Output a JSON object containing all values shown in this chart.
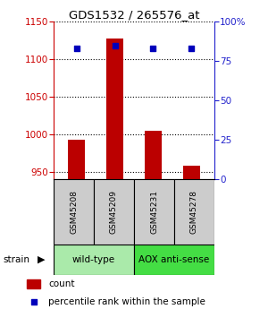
{
  "title": "GDS1532 / 265576_at",
  "samples": [
    "GSM45208",
    "GSM45209",
    "GSM45231",
    "GSM45278"
  ],
  "count_values": [
    993,
    1128,
    1004,
    958
  ],
  "percentile_values": [
    83,
    85,
    83,
    83
  ],
  "ylim_left": [
    940,
    1150
  ],
  "ylim_right": [
    0,
    100
  ],
  "yticks_left": [
    950,
    1000,
    1050,
    1100,
    1150
  ],
  "yticks_right": [
    0,
    25,
    50,
    75,
    100
  ],
  "yticklabels_right": [
    "0",
    "25",
    "50",
    "75",
    "100%"
  ],
  "bar_color": "#bb0000",
  "dot_color": "#0000bb",
  "axis_left_color": "#cc0000",
  "axis_right_color": "#2222cc",
  "sample_box_color": "#cccccc",
  "wt_color": "#aaeaaa",
  "aox_color": "#44dd44",
  "legend_count_label": "count",
  "legend_pct_label": "percentile rank within the sample"
}
